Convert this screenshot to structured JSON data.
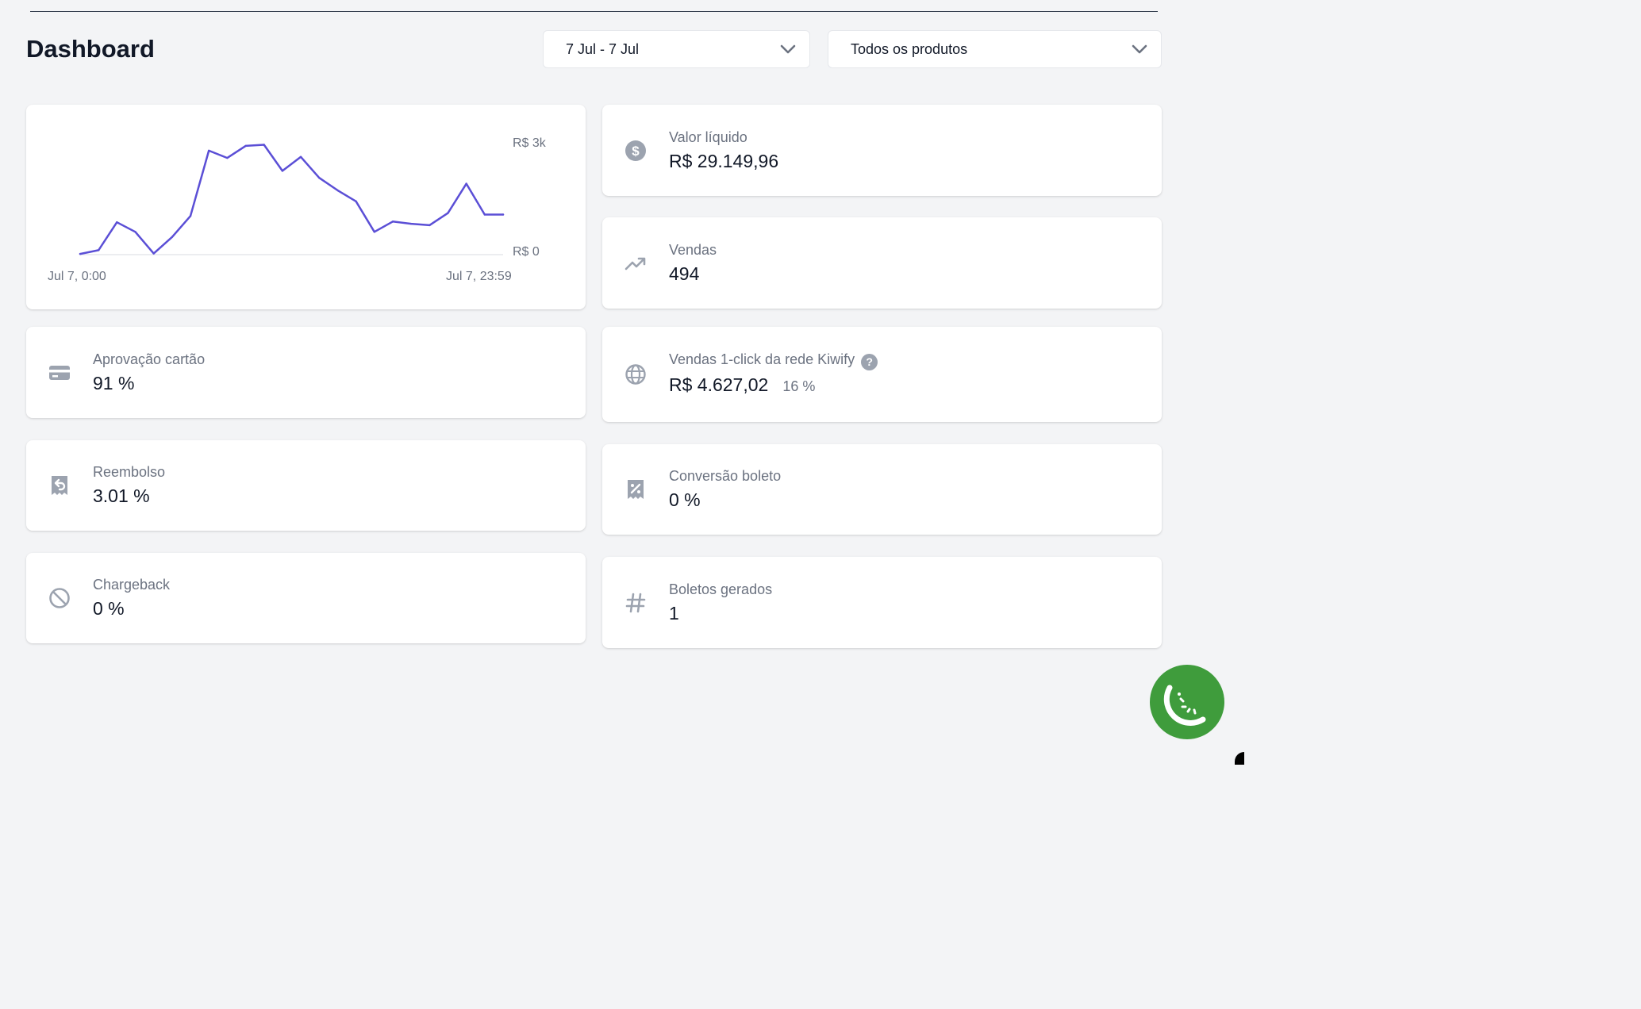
{
  "header": {
    "title": "Dashboard",
    "date_filter": "7 Jul - 7 Jul",
    "product_filter": "Todos os produtos"
  },
  "chart_data": {
    "type": "line",
    "color": "#5b4fd6",
    "x_labels": [
      "Jul 7, 0:00",
      "Jul 7, 23:59"
    ],
    "y_labels": [
      "R$ 3k",
      "R$ 0"
    ],
    "ylim": [
      0,
      3000
    ],
    "x": [
      "0:00",
      "1:00",
      "2:00",
      "3:00",
      "4:00",
      "5:00",
      "6:00",
      "7:00",
      "8:00",
      "9:00",
      "10:00",
      "11:00",
      "12:00",
      "13:00",
      "14:00",
      "15:00",
      "16:00",
      "17:00",
      "18:00",
      "19:00",
      "20:00",
      "21:00",
      "22:00",
      "23:00"
    ],
    "values": [
      20,
      120,
      880,
      620,
      30,
      480,
      1050,
      2830,
      2630,
      2960,
      2990,
      2280,
      2660,
      2090,
      1750,
      1450,
      620,
      900,
      840,
      800,
      1130,
      1930,
      1090,
      1090
    ]
  },
  "stats": {
    "valor_liquido": {
      "label": "Valor líquido",
      "value": "R$ 29.149,96",
      "icon": "dollar-circle-icon"
    },
    "vendas": {
      "label": "Vendas",
      "value": "494",
      "icon": "trending-up-icon"
    },
    "aprovacao": {
      "label": "Aprovação cartão",
      "value": "91 %",
      "icon": "credit-card-icon"
    },
    "one_click": {
      "label": "Vendas 1-click da rede Kiwify",
      "value": "R$ 4.627,02",
      "sub": "16 %",
      "help": "?",
      "icon": "globe-icon"
    },
    "reembolso": {
      "label": "Reembolso",
      "value": "3.01 %",
      "icon": "receipt-refund-icon"
    },
    "conversao": {
      "label": "Conversão boleto",
      "value": "0 %",
      "icon": "receipt-tax-icon"
    },
    "chargeback": {
      "label": "Chargeback",
      "value": "0 %",
      "icon": "ban-icon"
    },
    "boletos": {
      "label": "Boletos gerados",
      "value": "1",
      "icon": "hashtag-icon"
    }
  },
  "colors": {
    "accent": "#5b4fd6",
    "fab": "#3f9c3c",
    "background": "#f3f4f6"
  }
}
